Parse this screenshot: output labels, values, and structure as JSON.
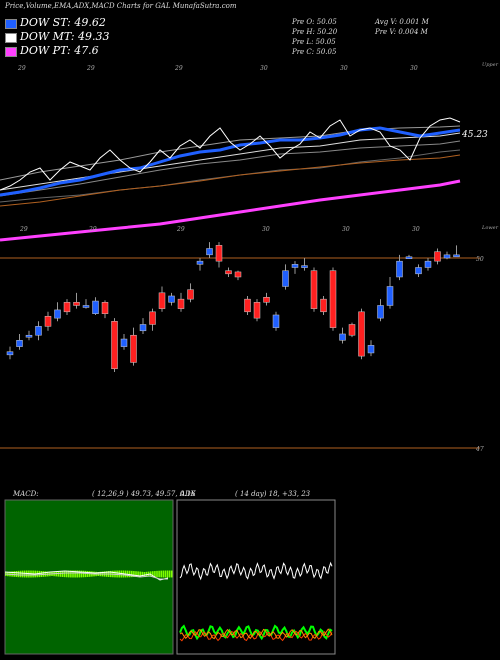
{
  "header": {
    "title": "Price,Volume,EMA,ADX,MACD Charts for GAL  MunafaSutra.com",
    "open": "Pre  O: 50.05",
    "high": "Pre  H: 50.20",
    "low": "Pre  L: 50.05",
    "close": "Pre  C: 50.05",
    "avg_volume": "Avg V: 0.001 M",
    "prev_volume": "Pre  V: 0.004  M"
  },
  "legend": [
    {
      "label": "DOW ST: 49.62",
      "color": "#2060ff"
    },
    {
      "label": "DOW MT: 49.33",
      "color": "#ffffff"
    },
    {
      "label": "DOW PT: 47.6",
      "color": "#ff40ff"
    }
  ],
  "top_labels": {
    "upper": "Upper",
    "lower": "Lower",
    "ema_value": "45.23"
  },
  "top_ticks": [
    "29",
    "29",
    "29",
    "30",
    "30",
    "30"
  ],
  "mid_ticks": [
    "29",
    "29",
    "29",
    "30",
    "30",
    "30"
  ],
  "price_labels": {
    "p50": "50",
    "p47": "47"
  },
  "macd": {
    "title": "MACD:",
    "params": "( 12,26,9 ) 49.73, 49.57, 0.16"
  },
  "adx": {
    "title": "ADX",
    "params": "( 14  day) 18, +33, 23"
  },
  "chart_data": {
    "type": "candlestick",
    "candles": [
      {
        "o": 48.52,
        "c": 48.47,
        "h": 48.6,
        "l": 48.4,
        "bull": true
      },
      {
        "o": 48.6,
        "c": 48.7,
        "h": 48.8,
        "l": 48.55,
        "bull": true
      },
      {
        "o": 48.78,
        "c": 48.78,
        "h": 48.85,
        "l": 48.7,
        "bull": true
      },
      {
        "o": 48.78,
        "c": 48.92,
        "h": 49.0,
        "l": 48.7,
        "bull": true
      },
      {
        "o": 48.92,
        "c": 49.08,
        "h": 49.15,
        "l": 48.85,
        "bull": false
      },
      {
        "o": 49.05,
        "c": 49.18,
        "h": 49.3,
        "l": 49.0,
        "bull": true
      },
      {
        "o": 49.15,
        "c": 49.3,
        "h": 49.35,
        "l": 49.1,
        "bull": false
      },
      {
        "o": 49.3,
        "c": 49.25,
        "h": 49.45,
        "l": 49.2,
        "bull": false
      },
      {
        "o": 49.25,
        "c": 49.25,
        "h": 49.35,
        "l": 49.2,
        "bull": true
      },
      {
        "o": 49.32,
        "c": 49.12,
        "h": 49.38,
        "l": 49.1,
        "bull": true
      },
      {
        "o": 49.3,
        "c": 49.12,
        "h": 49.33,
        "l": 49.05,
        "bull": false
      },
      {
        "o": 49.0,
        "c": 48.25,
        "h": 49.05,
        "l": 48.2,
        "bull": false
      },
      {
        "o": 48.6,
        "c": 48.72,
        "h": 48.8,
        "l": 48.55,
        "bull": true
      },
      {
        "o": 48.78,
        "c": 48.35,
        "h": 48.9,
        "l": 48.3,
        "bull": false
      },
      {
        "o": 48.85,
        "c": 48.95,
        "h": 49.05,
        "l": 48.8,
        "bull": true
      },
      {
        "o": 49.15,
        "c": 48.95,
        "h": 49.2,
        "l": 48.85,
        "bull": false
      },
      {
        "o": 49.2,
        "c": 49.45,
        "h": 49.55,
        "l": 49.15,
        "bull": false
      },
      {
        "o": 49.4,
        "c": 49.3,
        "h": 49.45,
        "l": 49.25,
        "bull": true
      },
      {
        "o": 49.2,
        "c": 49.35,
        "h": 49.45,
        "l": 49.15,
        "bull": false
      },
      {
        "o": 49.35,
        "c": 49.5,
        "h": 49.6,
        "l": 49.3,
        "bull": false
      },
      {
        "o": 49.9,
        "c": 49.95,
        "h": 50.0,
        "l": 49.8,
        "bull": true
      },
      {
        "o": 50.05,
        "c": 50.15,
        "h": 50.25,
        "l": 50.0,
        "bull": true
      },
      {
        "o": 50.2,
        "c": 49.95,
        "h": 50.25,
        "l": 49.85,
        "bull": false
      },
      {
        "o": 49.8,
        "c": 49.75,
        "h": 49.85,
        "l": 49.7,
        "bull": false
      },
      {
        "o": 49.78,
        "c": 49.7,
        "h": 49.8,
        "l": 49.65,
        "bull": false
      },
      {
        "o": 49.15,
        "c": 49.35,
        "h": 49.4,
        "l": 49.1,
        "bull": false
      },
      {
        "o": 49.3,
        "c": 49.05,
        "h": 49.35,
        "l": 49.0,
        "bull": false
      },
      {
        "o": 49.3,
        "c": 49.38,
        "h": 49.45,
        "l": 49.25,
        "bull": false
      },
      {
        "o": 48.9,
        "c": 49.1,
        "h": 49.15,
        "l": 48.85,
        "bull": true
      },
      {
        "o": 49.55,
        "c": 49.8,
        "h": 49.9,
        "l": 49.5,
        "bull": true
      },
      {
        "o": 49.85,
        "c": 49.9,
        "h": 49.95,
        "l": 49.75,
        "bull": true
      },
      {
        "o": 49.88,
        "c": 49.85,
        "h": 50.0,
        "l": 49.8,
        "bull": true
      },
      {
        "o": 49.8,
        "c": 49.2,
        "h": 49.85,
        "l": 49.15,
        "bull": false
      },
      {
        "o": 49.35,
        "c": 49.15,
        "h": 49.4,
        "l": 49.1,
        "bull": false
      },
      {
        "o": 49.8,
        "c": 48.9,
        "h": 49.85,
        "l": 48.85,
        "bull": false
      },
      {
        "o": 48.8,
        "c": 48.7,
        "h": 48.9,
        "l": 48.65,
        "bull": true
      },
      {
        "o": 48.95,
        "c": 48.78,
        "h": 48.98,
        "l": 48.75,
        "bull": false
      },
      {
        "o": 49.15,
        "c": 48.45,
        "h": 49.2,
        "l": 48.4,
        "bull": false
      },
      {
        "o": 48.5,
        "c": 48.62,
        "h": 48.7,
        "l": 48.45,
        "bull": true
      },
      {
        "o": 49.05,
        "c": 49.25,
        "h": 49.35,
        "l": 49.0,
        "bull": true
      },
      {
        "o": 49.25,
        "c": 49.55,
        "h": 49.7,
        "l": 49.2,
        "bull": true
      },
      {
        "o": 49.7,
        "c": 49.95,
        "h": 50.05,
        "l": 49.65,
        "bull": true
      },
      {
        "o": 50.02,
        "c": 50.02,
        "h": 50.05,
        "l": 50.0,
        "bull": true
      },
      {
        "o": 49.75,
        "c": 49.85,
        "h": 49.9,
        "l": 49.7,
        "bull": true
      },
      {
        "o": 49.85,
        "c": 49.95,
        "h": 50.0,
        "l": 49.8,
        "bull": true
      },
      {
        "o": 49.95,
        "c": 50.1,
        "h": 50.15,
        "l": 49.9,
        "bull": false
      },
      {
        "o": 50.0,
        "c": 50.05,
        "h": 50.1,
        "l": 49.98,
        "bull": true
      },
      {
        "o": 50.05,
        "c": 50.05,
        "h": 50.2,
        "l": 50.05,
        "bull": true
      }
    ]
  }
}
